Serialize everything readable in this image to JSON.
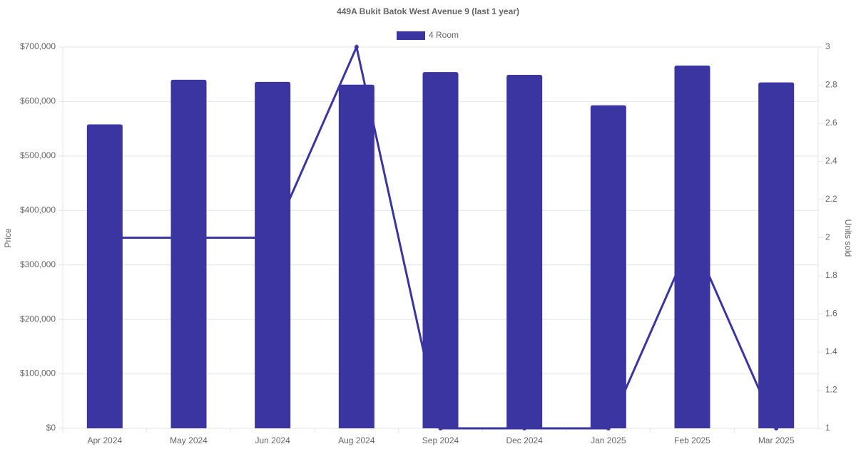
{
  "chart_data": {
    "type": "bar-line",
    "title": "449A Bukit Batok West Avenue 9 (last 1 year)",
    "categories": [
      "Apr 2024",
      "May 2024",
      "Jun 2024",
      "Aug 2024",
      "Sep 2024",
      "Dec 2024",
      "Jan 2025",
      "Feb 2025",
      "Mar 2025"
    ],
    "series": [
      {
        "name": "4 Room",
        "type": "bar",
        "color": "#3a35a0",
        "values": [
          558000,
          640000,
          636000,
          631000,
          654000,
          649000,
          593000,
          666000,
          635000
        ]
      },
      {
        "type": "line",
        "axis": "y2",
        "color": "#3a35a0",
        "values": [
          2,
          2,
          2,
          3,
          1,
          1,
          1,
          2,
          1
        ]
      }
    ],
    "ylabel": "Price",
    "y2label": "Units sold",
    "ylim": [
      0,
      700000
    ],
    "yticks": [
      {
        "value": 0,
        "label": "$0"
      },
      {
        "value": 100000,
        "label": "$100,000"
      },
      {
        "value": 200000,
        "label": "$200,000"
      },
      {
        "value": 300000,
        "label": "$300,000"
      },
      {
        "value": 400000,
        "label": "$400,000"
      },
      {
        "value": 500000,
        "label": "$500,000"
      },
      {
        "value": 600000,
        "label": "$600,000"
      },
      {
        "value": 700000,
        "label": "$700,000"
      }
    ],
    "y2lim": [
      1,
      3
    ],
    "y2ticks": [
      1,
      1.2,
      1.4,
      1.6,
      1.8,
      2,
      2.2,
      2.4,
      2.6,
      2.8,
      3
    ],
    "grid": true,
    "legend": "top"
  }
}
